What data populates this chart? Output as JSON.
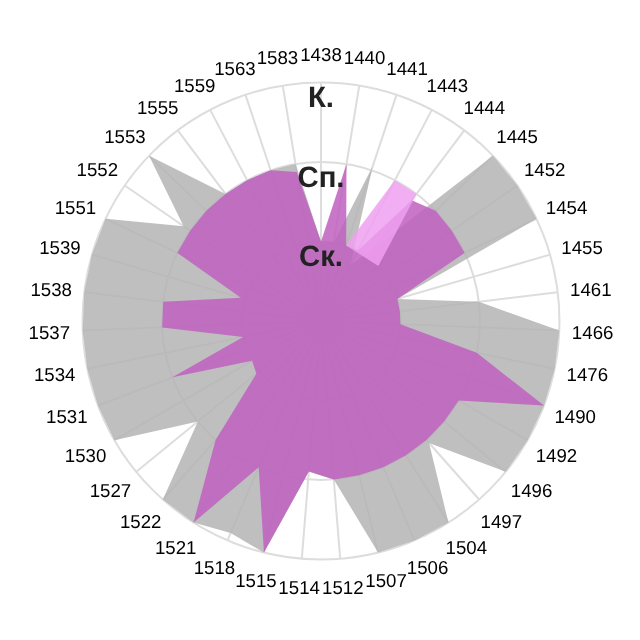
{
  "chart_data": {
    "type": "radar",
    "categories": [
      "1438",
      "1440",
      "1441",
      "1443",
      "1444",
      "1445",
      "1452",
      "1454",
      "1455",
      "1461",
      "1466",
      "1476",
      "1490",
      "1492",
      "1496",
      "1497",
      "1504",
      "1506",
      "1507",
      "1512",
      "1514",
      "1515",
      "1518",
      "1521",
      "1522",
      "1527",
      "1530",
      "1531",
      "1534",
      "1537",
      "1538",
      "1539",
      "1551",
      "1552",
      "1553",
      "1555",
      "1559",
      "1563",
      "1583"
    ],
    "ylim": [
      0,
      3
    ],
    "yticks": [
      {
        "value": 1,
        "label": "Ск."
      },
      {
        "value": 2,
        "label": "Сп."
      },
      {
        "value": 3,
        "label": "К."
      }
    ],
    "grid": true,
    "series": [
      {
        "color": "#b4b4b4",
        "values": [
          1.0,
          1.0,
          2.05,
          0.8,
          1.2,
          3.0,
          3.0,
          3.0,
          1.0,
          2.0,
          3.0,
          3.0,
          3.0,
          3.0,
          3.0,
          2.05,
          3.0,
          3.0,
          3.0,
          2.0,
          1.9,
          3.0,
          2.9,
          3.0,
          3.0,
          2.0,
          3.0,
          3.0,
          3.0,
          3.0,
          3.0,
          3.0,
          3.0,
          2.1,
          3.0,
          2.0,
          2.0,
          2.0,
          2.0
        ]
      },
      {
        "color": "#c060c0",
        "values": [
          1.0,
          2.0,
          1.0,
          1.0,
          1.9,
          2.0,
          2.0,
          2.0,
          1.0,
          1.0,
          1.0,
          2.0,
          3.0,
          2.0,
          2.0,
          2.0,
          2.0,
          2.0,
          2.0,
          2.0,
          1.9,
          3.0,
          2.0,
          3.0,
          2.0,
          1.05,
          1.0,
          2.0,
          1.0,
          2.0,
          2.0,
          1.05,
          2.0,
          2.0,
          2.0,
          2.0,
          2.0,
          2.0,
          1.9
        ]
      },
      {
        "color": "#f0a0f0",
        "values": [
          null,
          null,
          1.0,
          2.0,
          2.0,
          1.0,
          null,
          null,
          null,
          null,
          null,
          null,
          null,
          null,
          null,
          null,
          null,
          null,
          null,
          null,
          null,
          null,
          null,
          null,
          null,
          null,
          null,
          null,
          null,
          null,
          null,
          null,
          null,
          null,
          null,
          null,
          null,
          null,
          null
        ]
      }
    ]
  }
}
